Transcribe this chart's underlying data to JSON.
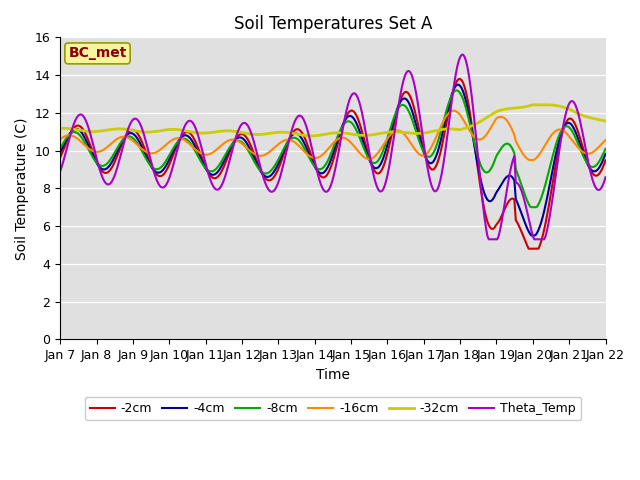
{
  "title": "Soil Temperatures Set A",
  "xlabel": "Time",
  "ylabel": "Soil Temperature (C)",
  "ylim": [
    0,
    16
  ],
  "yticks": [
    0,
    2,
    4,
    6,
    8,
    10,
    12,
    14,
    16
  ],
  "x_labels": [
    "Jan 7",
    "Jan 8",
    "Jan 9",
    "Jan 10",
    "Jan 11",
    "Jan 12",
    "Jan 13",
    "Jan 14",
    "Jan 15",
    "Jan 16",
    "Jan 17",
    "Jan 18",
    "Jan 19",
    "Jan 20",
    "Jan 21",
    "Jan 22"
  ],
  "background_color": "#e0e0e0",
  "annotation_text": "BC_met",
  "annotation_color": "#8B0000",
  "annotation_bg": "#f5f5a0",
  "series": {
    "-2cm": {
      "color": "#cc0000",
      "lw": 1.5
    },
    "-4cm": {
      "color": "#000099",
      "lw": 1.5
    },
    "-8cm": {
      "color": "#00aa00",
      "lw": 1.5
    },
    "-16cm": {
      "color": "#ff8800",
      "lw": 1.5
    },
    "-32cm": {
      "color": "#cccc00",
      "lw": 2.0
    },
    "Theta_Temp": {
      "color": "#aa00cc",
      "lw": 1.5
    }
  },
  "title_fontsize": 12,
  "label_fontsize": 10,
  "tick_fontsize": 9
}
